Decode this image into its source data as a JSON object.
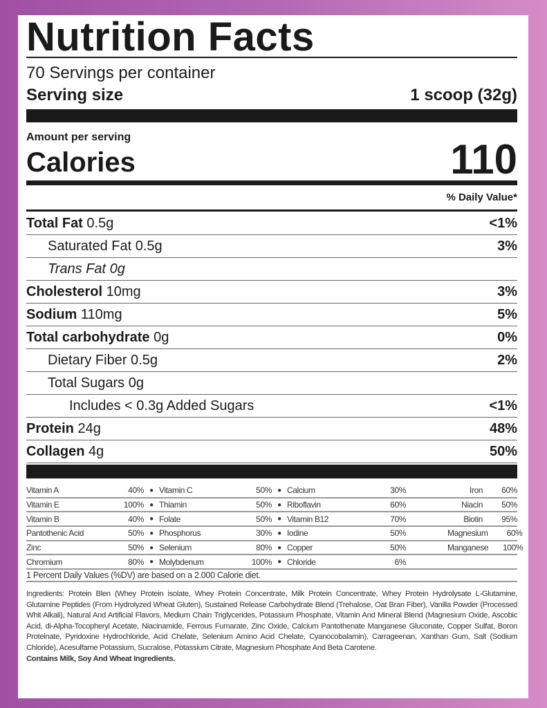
{
  "title": "Nutrition Facts",
  "servings": "70 Servings per container",
  "serving_size_label": "Serving size",
  "serving_size_value": "1 scoop (32g)",
  "amount_per_serving": "Amount per serving",
  "calories_label": "Calories",
  "calories_value": "110",
  "daily_value_header": "% Daily Value*",
  "nutrients": [
    {
      "name": "Total Fat",
      "amount": "0.5g",
      "dv": "<1%",
      "bold": true,
      "indent": 0
    },
    {
      "name": "Saturated Fat",
      "amount": "0.5g",
      "dv": "3%",
      "bold": false,
      "indent": 1
    },
    {
      "name": "Trans Fat",
      "amount": "0g",
      "dv": "",
      "bold": false,
      "indent": 1,
      "italic": true
    },
    {
      "name": "Cholesterol",
      "amount": "10mg",
      "dv": "3%",
      "bold": true,
      "indent": 0
    },
    {
      "name": "Sodium",
      "amount": "110mg",
      "dv": "5%",
      "bold": true,
      "indent": 0
    },
    {
      "name": "Total carbohydrate",
      "amount": "0g",
      "dv": "0%",
      "bold": true,
      "indent": 0
    },
    {
      "name": "Dietary Fiber",
      "amount": "0.5g",
      "dv": "2%",
      "bold": false,
      "indent": 1
    },
    {
      "name": "Total Sugars",
      "amount": "0g",
      "dv": "",
      "bold": false,
      "indent": 1
    },
    {
      "name": "Includes < 0.3g Added Sugars",
      "amount": "",
      "dv": "<1%",
      "bold": false,
      "indent": 2
    },
    {
      "name": "Protein",
      "amount": "24g",
      "dv": "48%",
      "bold": true,
      "indent": 0
    },
    {
      "name": "Collagen",
      "amount": "4g",
      "dv": "50%",
      "bold": true,
      "indent": 0
    }
  ],
  "vitamins": [
    [
      [
        "Vitamin A",
        "40%"
      ],
      [
        "Vitamin C",
        "50%"
      ],
      [
        "Calcium",
        "30%"
      ],
      [
        "Iron",
        "60%"
      ]
    ],
    [
      [
        "Vitamin E",
        "100%"
      ],
      [
        "Thiamin",
        "50%"
      ],
      [
        "Riboflavin",
        "60%"
      ],
      [
        "Niacin",
        "50%"
      ]
    ],
    [
      [
        "Vitamin B",
        "40%"
      ],
      [
        "Folate",
        "50%"
      ],
      [
        "Vitamin B12",
        "70%"
      ],
      [
        "Biotin",
        "95%"
      ]
    ],
    [
      [
        "Pantothenic Acid",
        "50%"
      ],
      [
        "Phosphorus",
        "30%"
      ],
      [
        "Iodine",
        "50%"
      ],
      [
        "Magnesium",
        "60%"
      ]
    ],
    [
      [
        "Zinc",
        "50%"
      ],
      [
        "Selenium",
        "80%"
      ],
      [
        "Copper",
        "50%"
      ],
      [
        "Manganese",
        "100%"
      ]
    ],
    [
      [
        "Chromium",
        "80%"
      ],
      [
        "Molybdenum",
        "100%"
      ],
      [
        "Chloride",
        "6%"
      ],
      [
        "",
        ""
      ]
    ]
  ],
  "footnote": "1 Percent Daily Values (%DV) are based on a 2.000 Calorie diet.",
  "ingredients": "Ingredients: Protein Blen (Whey Protein isolate, Whey Protein Concentrate, Milk Protein Concentrate, Whey Protein Hydrolysate L-Glutamine, Glutamine Peptides (From Hydrolyzed Wheat Gluten), Sustained Release Carbohydrate Blend (Trehalose, Oat Bran Fiber), Vanilla Powder (Processed Whit Alkali), Natural And Artificial Flavors, Medium Chain Triglycerides, Potassium Phosphate, Vitamin And Mineral Blend (Magnesium Oxide, Ascobic Acid, di-Alpha-Tocopheryl Acetate, Niacinamide, Ferrous Fumarate, Zinc Oxide, Calcium Pantothenate Manganese Gluconate, Copper Sulfat, Boron Proteinate, Pyridoxine Hydrochloride, Acid Chelate, Selenium Amino Acid Chelate, Cyanocobalamin), Carrageenan, Xanthan Gum, Salt (Sodium Chloride), Acesulfame Potassium, Sucralose, Potassium Citrate, Magnesium Phosphate And Beta Carotene.",
  "allergens": "Contains Milk, Soy And Wheat Ingredients."
}
